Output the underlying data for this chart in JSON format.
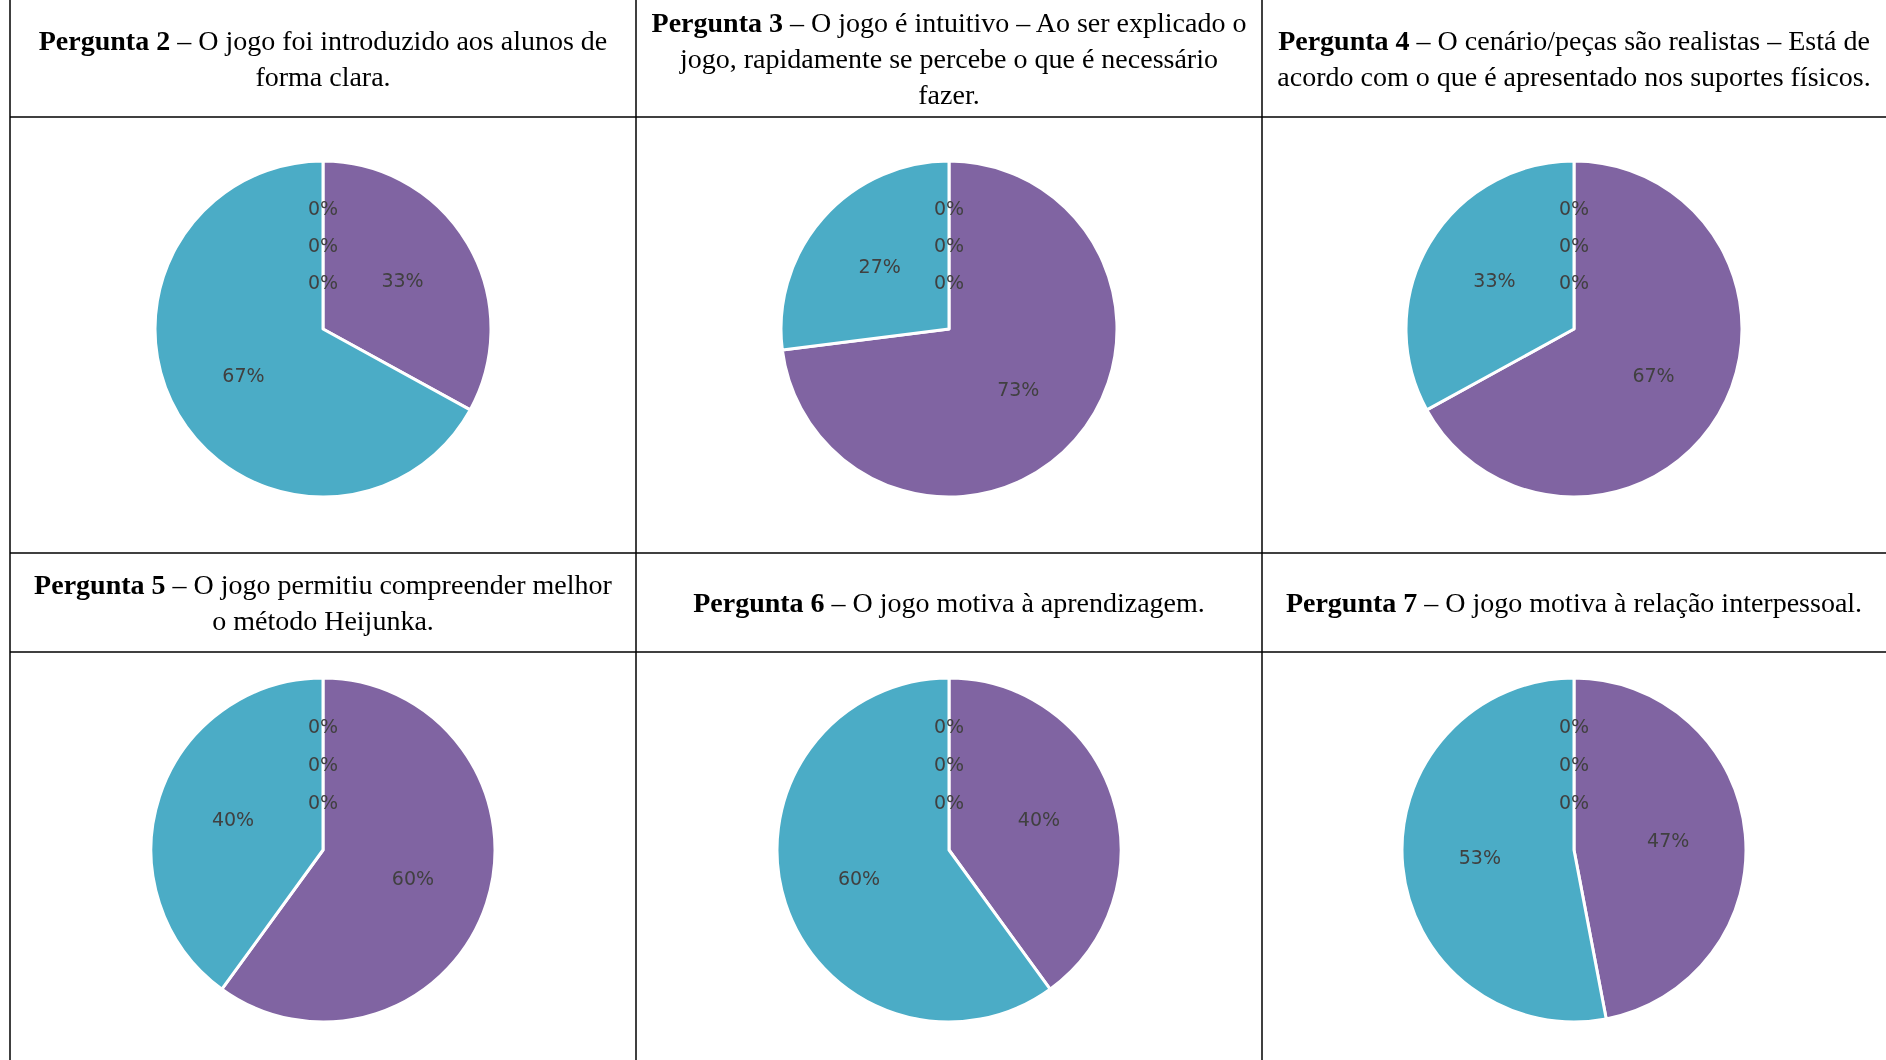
{
  "chart_data": [
    {
      "type": "pie",
      "title": "Pergunta 2 – O jogo foi introduzido aos alunos de forma clara.",
      "categories": [
        null,
        null,
        null,
        null,
        null
      ],
      "values": [
        0,
        0,
        0,
        33,
        67
      ],
      "value_labels": [
        "0%",
        "0%",
        "0%",
        "33%",
        "67%"
      ],
      "colors": [
        "#c0504d",
        "#9bbb59",
        "#4f81bd",
        "#8064a2",
        "#4bacc6"
      ]
    },
    {
      "type": "pie",
      "title": "Pergunta 3 – O jogo é intuitivo – Ao ser explicado o jogo, rapidamente se percebe o que é necessário fazer.",
      "categories": [
        null,
        null,
        null,
        null,
        null
      ],
      "values": [
        0,
        0,
        0,
        73,
        27
      ],
      "value_labels": [
        "0%",
        "0%",
        "0%",
        "73%",
        "27%"
      ],
      "colors": [
        "#c0504d",
        "#9bbb59",
        "#4f81bd",
        "#8064a2",
        "#4bacc6"
      ]
    },
    {
      "type": "pie",
      "title": "Pergunta 4 – O cenário/peças são realistas – Está de acordo com o que é apresentado nos suportes físicos.",
      "categories": [
        null,
        null,
        null,
        null,
        null
      ],
      "values": [
        0,
        0,
        0,
        67,
        33
      ],
      "value_labels": [
        "0%",
        "0%",
        "0%",
        "67%",
        "33%"
      ],
      "colors": [
        "#c0504d",
        "#9bbb59",
        "#4f81bd",
        "#8064a2",
        "#4bacc6"
      ]
    },
    {
      "type": "pie",
      "title": "Pergunta 5 – O jogo permitiu compreender melhor o método Heijunka.",
      "categories": [
        null,
        null,
        null,
        null,
        null
      ],
      "values": [
        0,
        0,
        0,
        60,
        40
      ],
      "value_labels": [
        "0%",
        "0%",
        "0%",
        "60%",
        "40%"
      ],
      "colors": [
        "#c0504d",
        "#9bbb59",
        "#4f81bd",
        "#8064a2",
        "#4bacc6"
      ]
    },
    {
      "type": "pie",
      "title": "Pergunta 6 – O jogo motiva à aprendizagem.",
      "categories": [
        null,
        null,
        null,
        null,
        null
      ],
      "values": [
        0,
        0,
        0,
        40,
        60
      ],
      "value_labels": [
        "0%",
        "0%",
        "0%",
        "40%",
        "60%"
      ],
      "colors": [
        "#c0504d",
        "#9bbb59",
        "#4f81bd",
        "#8064a2",
        "#4bacc6"
      ]
    },
    {
      "type": "pie",
      "title": "Pergunta 7 – O jogo motiva à relação interpessoal.",
      "categories": [
        null,
        null,
        null,
        null,
        null
      ],
      "values": [
        0,
        0,
        0,
        47,
        53
      ],
      "value_labels": [
        "0%",
        "0%",
        "0%",
        "47%",
        "53%"
      ],
      "colors": [
        "#c0504d",
        "#9bbb59",
        "#4f81bd",
        "#8064a2",
        "#4bacc6"
      ]
    }
  ]
}
